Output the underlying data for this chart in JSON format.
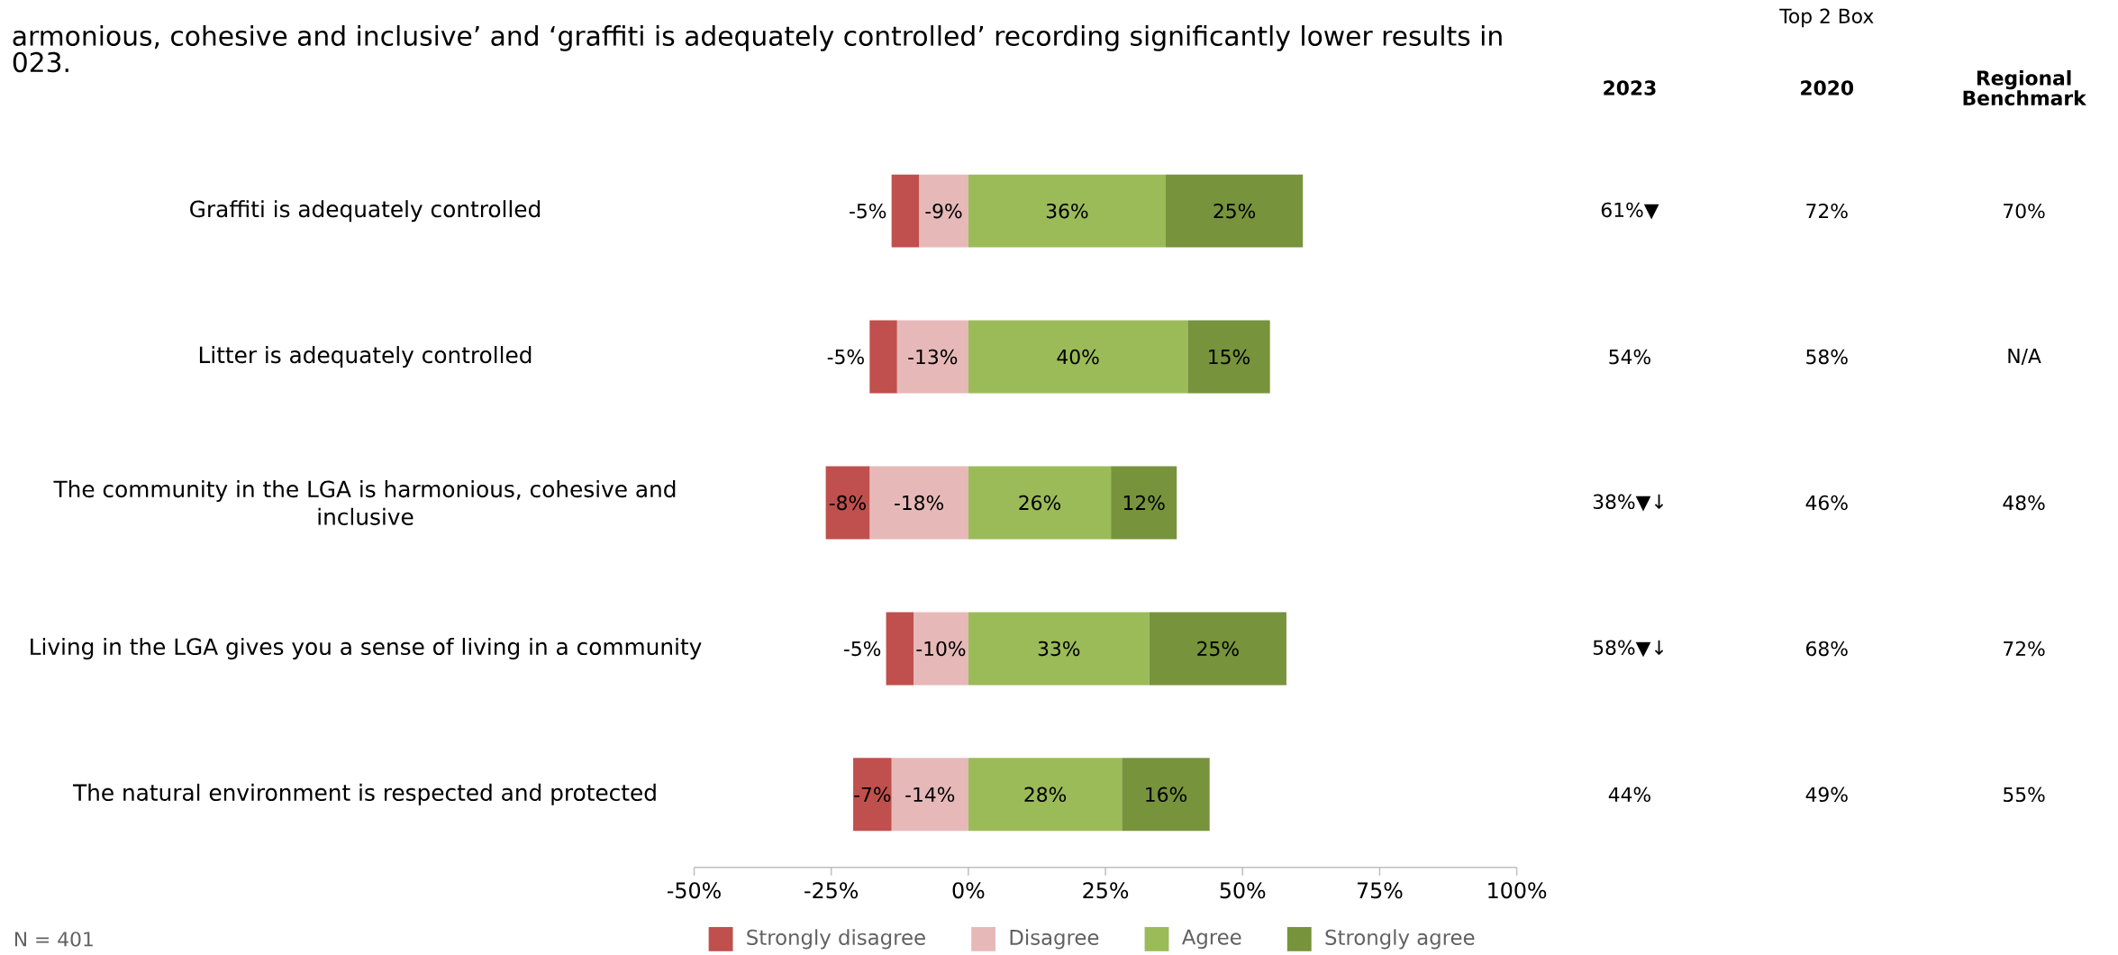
{
  "chart_data": [
    {
      "type": "bar",
      "orientation": "horizontal",
      "stacked": true,
      "title": "armonious, cohesive and inclusive’ and ‘graffiti is adequately controlled’ recording significantly lower results in 023.",
      "categories": [
        "Graffiti is adequately controlled",
        "Litter is adequately controlled",
        "The community in the LGA is harmonious, cohesive and inclusive",
        "Living in the LGA gives you a sense of living in a community",
        "The natural environment is respected and protected"
      ],
      "series": [
        {
          "name": "Disagree",
          "color": "#e6b9b8",
          "values": [
            -9,
            -13,
            -18,
            -10,
            -14
          ],
          "value_labels": [
            "-9%",
            "-13%",
            "-18%",
            "-10%",
            "-14%"
          ]
        },
        {
          "name": "Strongly disagree",
          "color": "#c0504d",
          "values": [
            -5,
            -5,
            -8,
            -5,
            -7
          ],
          "value_labels": [
            "-5%",
            "-5%",
            "-8%",
            "-5%",
            "-7%"
          ]
        },
        {
          "name": "Agree",
          "color": "#9bbb59",
          "values": [
            36,
            40,
            26,
            33,
            28
          ],
          "value_labels": [
            "36%",
            "40%",
            "26%",
            "33%",
            "28%"
          ]
        },
        {
          "name": "Strongly agree",
          "color": "#77933c",
          "values": [
            25,
            15,
            12,
            25,
            16
          ],
          "value_labels": [
            "25%",
            "15%",
            "12%",
            "25%",
            "16%"
          ]
        }
      ],
      "xlim": [
        -50,
        100
      ],
      "xticks": [
        {
          "value": -50,
          "label": "-50%"
        },
        {
          "value": -25,
          "label": "-25%"
        },
        {
          "value": 0,
          "label": "0%"
        },
        {
          "value": 25,
          "label": "25%"
        },
        {
          "value": 50,
          "label": "50%"
        },
        {
          "value": 75,
          "label": "75%"
        },
        {
          "value": 100,
          "label": "100%"
        }
      ],
      "legend": "bottom",
      "annotations": [
        "N = 401"
      ]
    },
    {
      "type": "other",
      "title": "Top 2 Box",
      "categories": [
        "2023",
        "2020",
        "Regional Benchmark"
      ],
      "cell_labels": [
        [
          "61%▼",
          "72%",
          "70%"
        ],
        [
          "54%",
          "58%",
          "N/A"
        ],
        [
          "38%▼↓",
          "46%",
          "48%"
        ],
        [
          "58%▼↓",
          "68%",
          "72%"
        ],
        [
          "44%",
          "49%",
          "55%"
        ]
      ]
    }
  ]
}
